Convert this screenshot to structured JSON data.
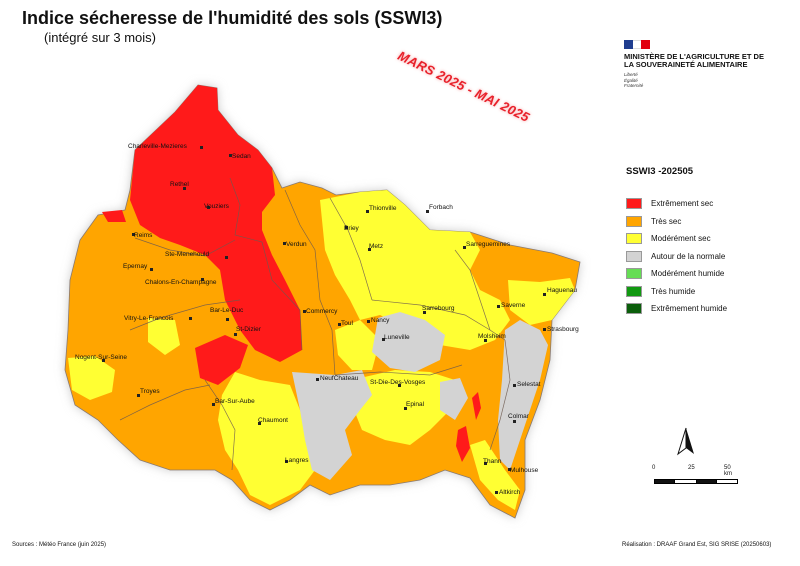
{
  "title": "Indice sécheresse de l'humidité des sols (SSWI3)",
  "subtitle": "(intégré sur 3 mois)",
  "period_stamp": "MARS 2025 - MAI 2025",
  "ministry": {
    "name": "MINISTÈRE DE L'AGRICULTURE ET DE LA SOUVERAINETÉ ALIMENTAIRE",
    "motto": [
      "Liberté",
      "Égalité",
      "Fraternité"
    ]
  },
  "legend": {
    "title": "SSWI3 -202505",
    "items": [
      {
        "label": "Extrêmement sec",
        "color": "#ff1a1a"
      },
      {
        "label": "Très sec",
        "color": "#ffa500"
      },
      {
        "label": "Modérément sec",
        "color": "#ffff33"
      },
      {
        "label": "Autour de la normale",
        "color": "#d3d3d3"
      },
      {
        "label": "Modérément humide",
        "color": "#66dd55"
      },
      {
        "label": "Très humide",
        "color": "#119911"
      },
      {
        "label": "Extrêmement humide",
        "color": "#0b5e0b"
      }
    ]
  },
  "scale": {
    "labels": [
      "0",
      "25",
      "50 km"
    ]
  },
  "cities": [
    "Charleville-Mezieres",
    "Sedan",
    "Rethel",
    "Vouziers",
    "Reims",
    "Ste-Menehould",
    "Verdun",
    "Epernay",
    "Chalons-En-Champagne",
    "Thionville",
    "Briey",
    "Forbach",
    "Sarreguemines",
    "Metz",
    "Commercy",
    "Toul",
    "Nancy",
    "Sarrebourg",
    "Saverne",
    "Haguenau",
    "Vitry-Le-Francois",
    "Bar-Le-Duc",
    "St-Dizier",
    "Luneville",
    "Molsheim",
    "Strasbourg",
    "Nogent-Sur-Seine",
    "NeufChateau",
    "St-Die-Des-Vosges",
    "Selestat",
    "Troyes",
    "Bar-Sur-Aube",
    "Epinal",
    "Colmar",
    "Chaumont",
    "Langres",
    "Thann",
    "Mulhouse",
    "Altkirch"
  ],
  "footer": {
    "sources": "Sources : Météo France (juin 2025)",
    "credit": "Réalisation : DRAAF Grand Est, SIG SRISE (20250603)"
  }
}
